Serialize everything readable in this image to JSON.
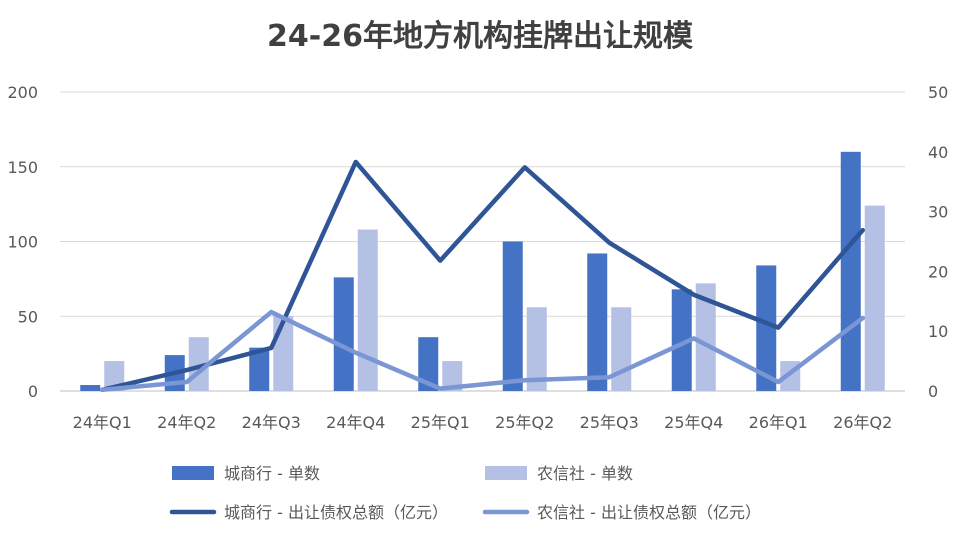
{
  "chart_data": {
    "type": "bar",
    "title": "24-26年地方机构挂牌出让规模",
    "categories": [
      "24年Q1",
      "24年Q2",
      "24年Q3",
      "24年Q4",
      "25年Q1",
      "25年Q2",
      "25年Q3",
      "25年Q4",
      "26年Q1",
      "26年Q2"
    ],
    "y_left": {
      "ticks": [
        "0",
        "50",
        "100",
        "150",
        "200"
      ],
      "min": 0,
      "max": 200
    },
    "y_right": {
      "ticks": [
        "0",
        "10",
        "20",
        "30",
        "40",
        "50"
      ],
      "min": 0,
      "max": 50
    },
    "grid": true,
    "legend_position": "bottom",
    "series": [
      {
        "name": "城商行 - 单数",
        "type": "bar",
        "axis": "left",
        "color": "#4472C4",
        "values": [
          4,
          24,
          29,
          76,
          36,
          100,
          92,
          68,
          84,
          160
        ]
      },
      {
        "name": "农信社 - 单数",
        "type": "bar",
        "axis": "left",
        "color": "#B4C0E4",
        "values": [
          20,
          36,
          50,
          108,
          20,
          56,
          56,
          72,
          20,
          124
        ]
      },
      {
        "name": "城商行 - 出让债权总额（亿元）",
        "type": "line",
        "axis": "right",
        "color": "#2F5597",
        "values": [
          0.2,
          3.5,
          7.2,
          38.3,
          21.8,
          37.4,
          24.8,
          16.1,
          10.6,
          26.9
        ]
      },
      {
        "name": "农信社 - 出让债权总额（亿元）",
        "type": "line",
        "axis": "right",
        "color": "#7A96D4",
        "values": [
          0.2,
          1.5,
          13.2,
          6.4,
          0.4,
          1.8,
          2.3,
          8.8,
          1.5,
          12.2
        ]
      }
    ]
  }
}
